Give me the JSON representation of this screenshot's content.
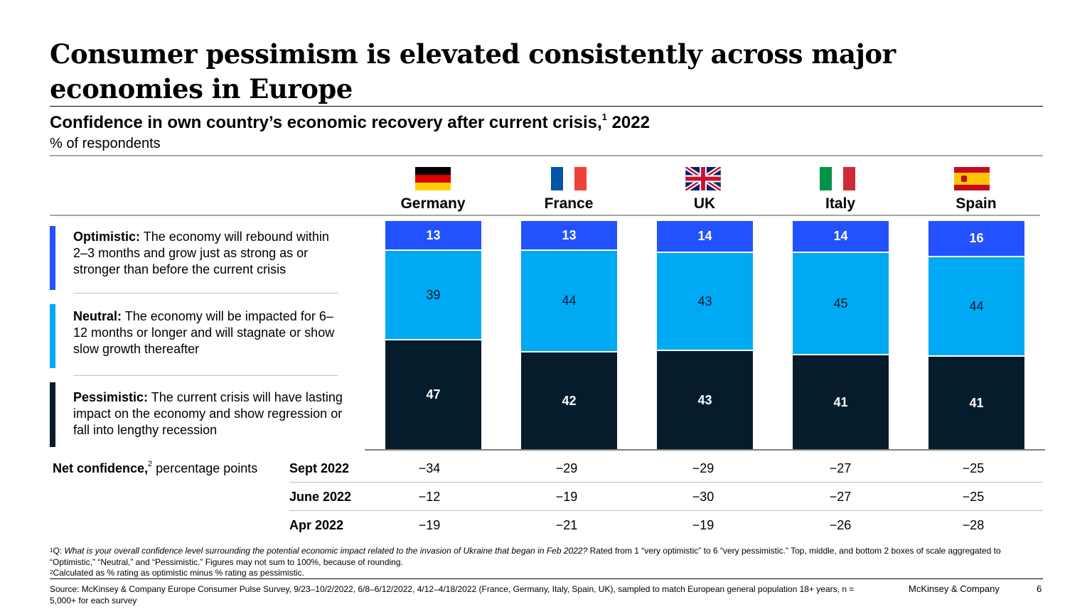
{
  "title": "Consumer pessimism is elevated consistently across major economies in Europe",
  "subtitle": "Confidence in own country’s economic recovery after current crisis,",
  "subtitle_sup": "1",
  "subtitle_year": "2022",
  "unit": "% of respondents",
  "legend": [
    {
      "bold": "Optimistic:",
      "text": "The economy will rebound within 2–3 months and grow just as strong as or stronger than before the current crisis",
      "color": "#2251ff"
    },
    {
      "bold": "Neutral:",
      "text": "The economy will be impacted for 6–12 months or longer and will stagnate or show slow growth thereafter",
      "color": "#00a9f4"
    },
    {
      "bold": "Pessimistic:",
      "text": "The current crisis will have lasting impact on the economy and show regression or fall into lengthy recession",
      "color": "#051c2c"
    }
  ],
  "chart_data": {
    "type": "bar",
    "stacked": true,
    "categories": [
      "Germany",
      "France",
      "UK",
      "Italy",
      "Spain"
    ],
    "series": [
      {
        "name": "Optimistic",
        "values": [
          13,
          13,
          14,
          14,
          16
        ],
        "color": "#2251ff"
      },
      {
        "name": "Neutral",
        "values": [
          39,
          44,
          43,
          45,
          44
        ],
        "color": "#00a9f4"
      },
      {
        "name": "Pessimistic",
        "values": [
          47,
          42,
          43,
          41,
          41
        ],
        "color": "#051c2c"
      }
    ]
  },
  "net_confidence": {
    "label_bold": "Net confidence,",
    "label_sup": "2",
    "label_rest": "percentage points",
    "rows": [
      {
        "label": "Sept 2022",
        "values": [
          "−34",
          "−29",
          "−29",
          "−27",
          "−25"
        ]
      },
      {
        "label": "June 2022",
        "values": [
          "−12",
          "−19",
          "−30",
          "−27",
          "−25"
        ]
      },
      {
        "label": "Apr 2022",
        "values": [
          "−19",
          "−21",
          "−19",
          "−26",
          "−28"
        ]
      }
    ]
  },
  "footnotes": {
    "f1_sup": "1",
    "f1_prefix": "Q: ",
    "f1_question": "What is your overall confidence level surrounding the potential economic impact related to the invasion of Ukraine that began in Feb 2022?",
    "f1_rest": " Rated from 1 “very optimistic” to 6 “very pessimistic.” Top, middle, and bottom 2 boxes of scale aggregated to “Optimistic,” “Neutral,” and “Pessimistic.” Figures may not sum to 100%, because of rounding.",
    "f2_sup": "2",
    "f2_text": "Calculated as % rating as optimistic minus % rating as pessimistic.",
    "source": "Source: McKinsey & Company Europe Consumer Pulse Survey, 9/23–10/2/2022, 6/8–6/12/2022, 4/12–4/18/2022 (France, Germany, Italy, Spain, UK), sampled to match European general population 18+ years, n = 5,000+ for each survey",
    "brand": "McKinsey & Company",
    "page": "6"
  }
}
